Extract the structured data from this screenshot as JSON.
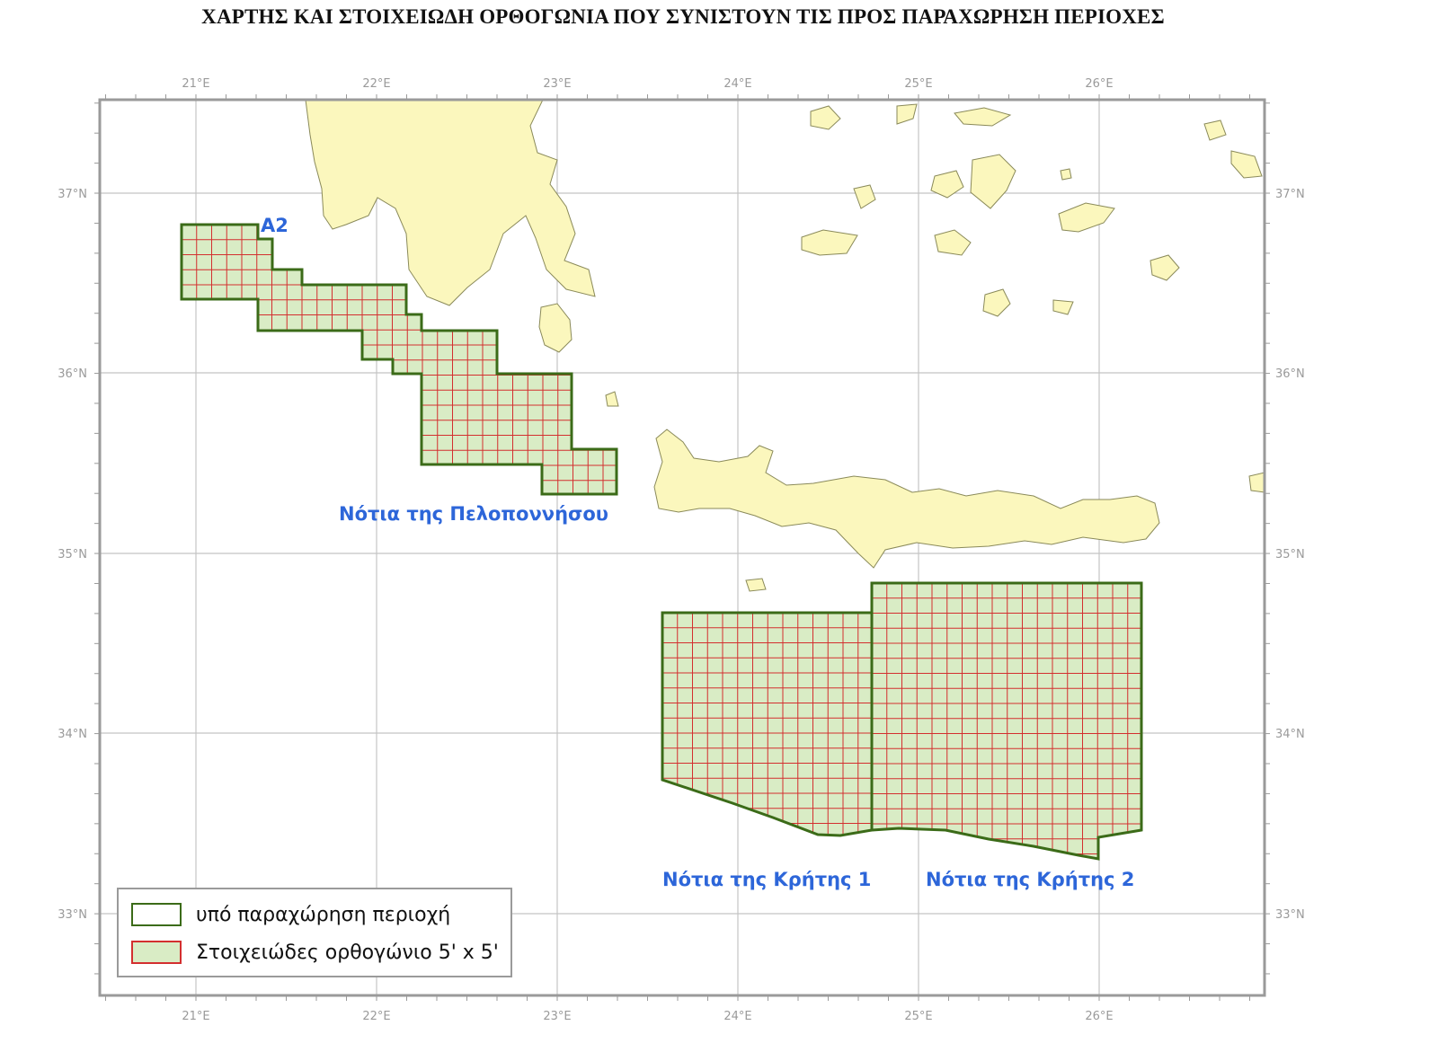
{
  "title": "ΧΑΡΤΗΣ ΚΑΙ ΣΤΟΙΧΕΙΩΔΗ ΟΡΘΟΓΩΝΙΑ ΠΟΥ ΣΥΝΙΣΤΟΥΝ ΤΙΣ ΠΡΟΣ ΠΑΡΑΧΩΡΗΣΗ ΠΕΡΙΟΧΕΣ",
  "axes": {
    "lon_ticks": [
      "21°E",
      "22°E",
      "23°E",
      "24°E",
      "25°E",
      "26°E"
    ],
    "lat_ticks": [
      "37°N",
      "36°N",
      "35°N",
      "34°N",
      "33°N"
    ]
  },
  "regions": {
    "a2": "A2",
    "peloponnese": "Νότια της Πελοποννήσου",
    "crete1": "Νότια της Κρήτης 1",
    "crete2": "Νότια της Κρήτης 2"
  },
  "legend": {
    "area_label": "υπό παραχώρηση περιοχή",
    "block_label": "Στοιχειώδες ορθογώνιο 5' x 5'"
  },
  "colors": {
    "land": "#fbf7bd",
    "land_outline": "#8a8a5a",
    "area_fill": "#d9ecc5",
    "area_outline": "#3b6b18",
    "grid_lines": "#d32f2f",
    "graticule": "#c4c4c4",
    "label_blue": "#2d66d9"
  }
}
